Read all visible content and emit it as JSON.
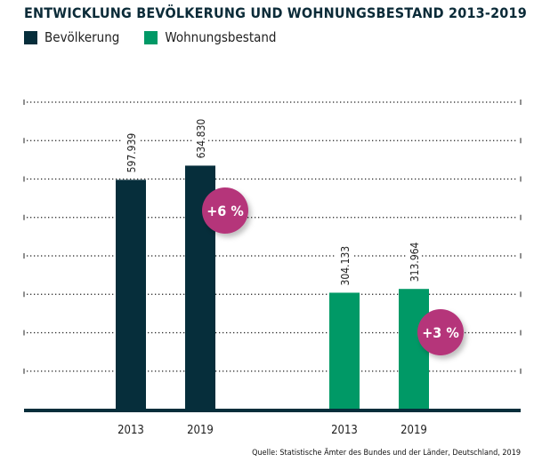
{
  "chart_data": {
    "type": "bar",
    "title": "ENTWICKLUNG BEVÖLKERUNG UND WOHNUNGSBESTAND 2013-2019",
    "categories": [
      "2013",
      "2019",
      "2013",
      "2019"
    ],
    "series": [
      {
        "name": "Bevölkerung",
        "color": "#062e3b",
        "x": [
          "2013",
          "2019"
        ],
        "values": [
          597939,
          634830
        ],
        "labels": [
          "597.939",
          "634.830"
        ],
        "change_label": "+6 %"
      },
      {
        "name": "Wohnungsbestand",
        "color": "#009966",
        "x": [
          "2013",
          "2019"
        ],
        "values": [
          304133,
          313964
        ],
        "labels": [
          "304.133",
          "313.964"
        ],
        "change_label": "+3 %"
      }
    ],
    "ylim": [
      0,
      800000
    ],
    "grid_step": 100000,
    "grid": true,
    "y_tick_labels_shown": false,
    "legend_position": "top-left",
    "badge_color": "#b5347a"
  },
  "source": "Quelle: Statistische Ämter des Bundes und der Länder, Deutschland, 2019"
}
